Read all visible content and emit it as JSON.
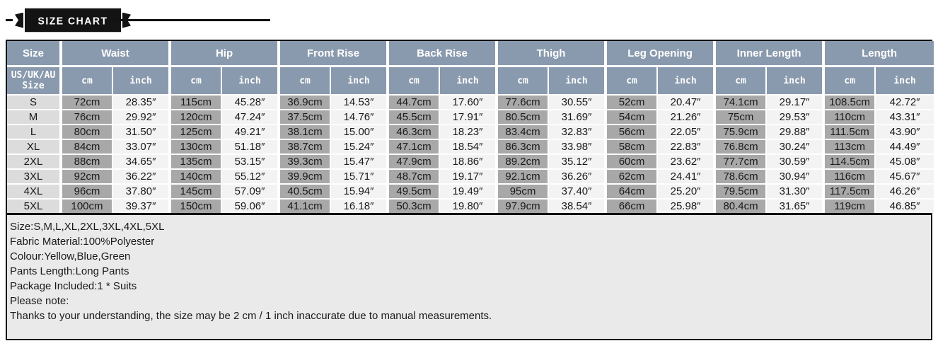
{
  "banner": {
    "dash": "-",
    "title": "SIZE CHART"
  },
  "chart_data": {
    "type": "table",
    "title": "SIZE CHART",
    "size_column": {
      "header": "Size",
      "subheader": "US/UK/AU\nSize"
    },
    "measure_groups": [
      "Waist",
      "Hip",
      "Front Rise",
      "Back Rise",
      "Thigh",
      "Leg Opening",
      "Inner Length",
      "Length"
    ],
    "unit_labels": [
      "cm",
      "inch"
    ],
    "rows": [
      {
        "size": "S",
        "values": [
          "72cm",
          "28.35″",
          "115cm",
          "45.28″",
          "36.9cm",
          "14.53″",
          "44.7cm",
          "17.60″",
          "77.6cm",
          "30.55″",
          "52cm",
          "20.47″",
          "74.1cm",
          "29.17″",
          "108.5cm",
          "42.72″"
        ]
      },
      {
        "size": "M",
        "values": [
          "76cm",
          "29.92″",
          "120cm",
          "47.24″",
          "37.5cm",
          "14.76″",
          "45.5cm",
          "17.91″",
          "80.5cm",
          "31.69″",
          "54cm",
          "21.26″",
          "75cm",
          "29.53″",
          "110cm",
          "43.31″"
        ]
      },
      {
        "size": "L",
        "values": [
          "80cm",
          "31.50″",
          "125cm",
          "49.21″",
          "38.1cm",
          "15.00″",
          "46.3cm",
          "18.23″",
          "83.4cm",
          "32.83″",
          "56cm",
          "22.05″",
          "75.9cm",
          "29.88″",
          "111.5cm",
          "43.90″"
        ]
      },
      {
        "size": "XL",
        "values": [
          "84cm",
          "33.07″",
          "130cm",
          "51.18″",
          "38.7cm",
          "15.24″",
          "47.1cm",
          "18.54″",
          "86.3cm",
          "33.98″",
          "58cm",
          "22.83″",
          "76.8cm",
          "30.24″",
          "113cm",
          "44.49″"
        ]
      },
      {
        "size": "2XL",
        "values": [
          "88cm",
          "34.65″",
          "135cm",
          "53.15″",
          "39.3cm",
          "15.47″",
          "47.9cm",
          "18.86″",
          "89.2cm",
          "35.12″",
          "60cm",
          "23.62″",
          "77.7cm",
          "30.59″",
          "114.5cm",
          "45.08″"
        ]
      },
      {
        "size": "3XL",
        "values": [
          "92cm",
          "36.22″",
          "140cm",
          "55.12″",
          "39.9cm",
          "15.71″",
          "48.7cm",
          "19.17″",
          "92.1cm",
          "36.26″",
          "62cm",
          "24.41″",
          "78.6cm",
          "30.94″",
          "116cm",
          "45.67″"
        ]
      },
      {
        "size": "4XL",
        "values": [
          "96cm",
          "37.80″",
          "145cm",
          "57.09″",
          "40.5cm",
          "15.94″",
          "49.5cm",
          "19.49″",
          "95cm",
          "37.40″",
          "64cm",
          "25.20″",
          "79.5cm",
          "31.30″",
          "117.5cm",
          "46.26″"
        ]
      },
      {
        "size": "5XL",
        "values": [
          "100cm",
          "39.37″",
          "150cm",
          "59.06″",
          "41.1cm",
          "16.18″",
          "50.3cm",
          "19.80″",
          "97.9cm",
          "38.54″",
          "66cm",
          "25.98″",
          "80.4cm",
          "31.65″",
          "119cm",
          "46.85″"
        ]
      }
    ]
  },
  "notes": {
    "lines": [
      "Size:S,M,L,XL,2XL,3XL,4XL,5XL",
      "Fabric Material:100%Polyester",
      "Colour:Yellow,Blue,Green",
      "Pants Length:Long Pants",
      "Package Included:1 * Suits",
      "Please note:",
      "Thanks to your understanding, the size may be 2 cm / 1 inch inaccurate due to manual measurements."
    ]
  },
  "colors": {
    "header_bg": "#8a9aae",
    "cm_cell_bg": "#a8a8a8",
    "inch_cell_bg": "#f3f3f3",
    "size_cell_bg": "#dcdcdc",
    "notes_bg": "#eaeaea",
    "ribbon_bg": "#131313",
    "border_dark": "#111111"
  }
}
